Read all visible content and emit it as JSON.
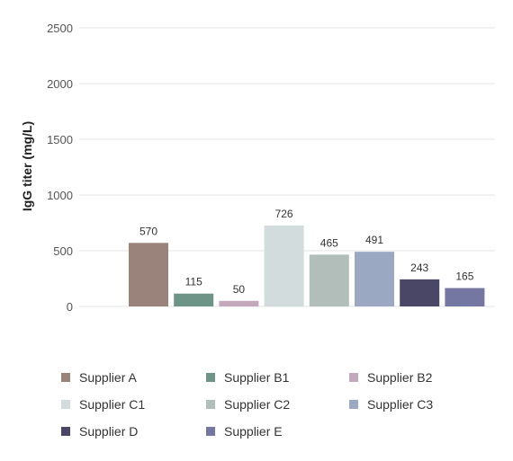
{
  "chart_data": {
    "type": "bar",
    "title": "",
    "xlabel": "",
    "ylabel": "IgG titer (mg/L)",
    "ylim": [
      0,
      2500
    ],
    "yticks": [
      0,
      500,
      1000,
      1500,
      2000,
      2500
    ],
    "grid": true,
    "legend_position": "bottom",
    "categories": [
      "Supplier A",
      "Supplier B1",
      "Supplier B2",
      "Supplier C1",
      "Supplier C2",
      "Supplier C3",
      "Supplier D",
      "Supplier E"
    ],
    "values": [
      570,
      115,
      50,
      726,
      465,
      491,
      243,
      165
    ],
    "colors": [
      "#9a837a",
      "#6e9387",
      "#c4a9bd",
      "#d2dcdc",
      "#b2beb9",
      "#9aa8c2",
      "#4a4766",
      "#7577a3"
    ]
  }
}
